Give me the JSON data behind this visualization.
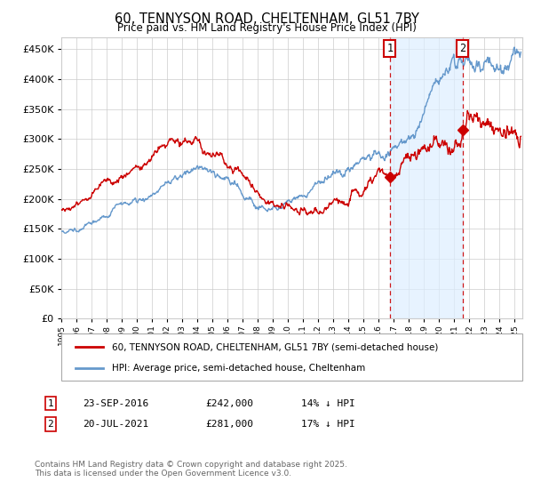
{
  "title": "60, TENNYSON ROAD, CHELTENHAM, GL51 7BY",
  "subtitle": "Price paid vs. HM Land Registry's House Price Index (HPI)",
  "ylim": [
    0,
    470000
  ],
  "yticks": [
    0,
    50000,
    100000,
    150000,
    200000,
    250000,
    300000,
    350000,
    400000,
    450000
  ],
  "year_start": 1995,
  "year_end": 2025,
  "line1_color": "#cc0000",
  "line2_color": "#6699cc",
  "shade_color": "#ddeeff",
  "marker1_date": 2016.73,
  "marker2_date": 2021.55,
  "marker1_label": "23-SEP-2016",
  "marker1_price": "£242,000",
  "marker1_hpi": "14% ↓ HPI",
  "marker2_label": "20-JUL-2021",
  "marker2_price": "£281,000",
  "marker2_hpi": "17% ↓ HPI",
  "legend1": "60, TENNYSON ROAD, CHELTENHAM, GL51 7BY (semi-detached house)",
  "legend2": "HPI: Average price, semi-detached house, Cheltenham",
  "footnote": "Contains HM Land Registry data © Crown copyright and database right 2025.\nThis data is licensed under the Open Government Licence v3.0.",
  "background_color": "#ffffff",
  "grid_color": "#cccccc"
}
